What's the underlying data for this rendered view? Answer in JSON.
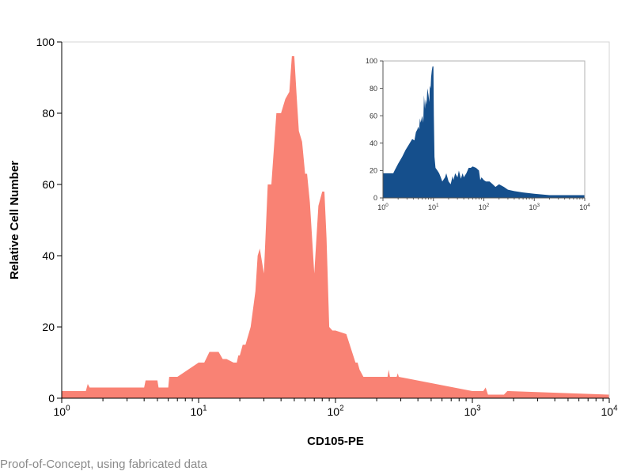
{
  "footer_text": "Proof-of-Concept, using fabricated data",
  "chart_data": [
    {
      "type": "area",
      "xlabel": "CD105-PE",
      "ylabel": "Relative Cell Number",
      "x_scale": "log",
      "xlim": [
        1,
        10000
      ],
      "ylim": [
        0,
        100
      ],
      "x_tick_labels": [
        {
          "base": "10",
          "exp": "0"
        },
        {
          "base": "10",
          "exp": "1"
        },
        {
          "base": "10",
          "exp": "2"
        },
        {
          "base": "10",
          "exp": "3"
        },
        {
          "base": "10",
          "exp": "4"
        }
      ],
      "y_ticks": [
        0,
        20,
        40,
        60,
        80,
        100
      ],
      "color": "#f98274",
      "series": [
        {
          "x": [
            1,
            1.5,
            1.55,
            1.6,
            4.0,
            4.1,
            5.0,
            5.1,
            6.0,
            6.1,
            7.0,
            10.0,
            11.0,
            12.0,
            14.0,
            15.0,
            16.0,
            18.0,
            19.0,
            19.5,
            20.0,
            21.0,
            22.0,
            24.0,
            26.0,
            27.0,
            28.0,
            30.0,
            32.0,
            34.0,
            37.0,
            40.0,
            43.0,
            46.0,
            48.0,
            50.0,
            52.0,
            54.0,
            57.0,
            60.0,
            62.0,
            65.0,
            70.0,
            75.0,
            80.0,
            83.0,
            86.0,
            90.0,
            95.0,
            100.0,
            120.0,
            140.0,
            145.0,
            150.0,
            160.0,
            240.0,
            245.0,
            250.0,
            280.0,
            285.0,
            290.0,
            1000.0,
            1200.0,
            1250.0,
            1300.0,
            1700.0,
            1800.0,
            1850.0,
            10000.0
          ],
          "y": [
            2,
            2,
            4,
            3,
            3,
            5,
            5,
            3,
            3,
            6,
            6,
            10,
            10,
            13,
            13,
            11,
            11,
            10,
            10,
            12,
            12,
            15,
            15,
            20,
            30,
            40,
            42,
            35,
            60,
            60,
            80,
            80,
            84,
            86,
            96,
            96,
            85,
            75,
            72,
            63,
            63,
            55,
            35,
            54,
            58,
            58,
            45,
            20,
            19,
            19,
            18,
            10,
            10,
            8,
            6,
            6,
            8,
            6,
            6,
            7,
            6,
            2,
            2,
            3,
            1,
            1,
            2,
            2,
            1
          ]
        }
      ]
    },
    {
      "type": "area",
      "inset": true,
      "x_scale": "log",
      "xlim": [
        1,
        10000
      ],
      "ylim": [
        0,
        100
      ],
      "x_tick_labels": [
        {
          "base": "10",
          "exp": "0"
        },
        {
          "base": "10",
          "exp": "1"
        },
        {
          "base": "10",
          "exp": "2"
        },
        {
          "base": "10",
          "exp": "3"
        },
        {
          "base": "10",
          "exp": "4"
        }
      ],
      "y_ticks": [
        0,
        20,
        40,
        60,
        80,
        100
      ],
      "color": "#154f8c",
      "series": [
        {
          "x": [
            1.0,
            1.6,
            1.7,
            2.0,
            2.4,
            2.8,
            3.4,
            3.8,
            4.2,
            4.5,
            4.8,
            5.0,
            5.2,
            5.4,
            5.6,
            6.0,
            6.3,
            6.5,
            6.8,
            7.0,
            7.3,
            7.6,
            8.0,
            8.3,
            8.5,
            8.8,
            9.0,
            9.3,
            9.6,
            10.0,
            10.2,
            10.5,
            11.0,
            12.0,
            13.0,
            14.0,
            15.0,
            17.0,
            18.0,
            20.0,
            22.0,
            24.0,
            25.0,
            27.0,
            30.0,
            32.0,
            35.0,
            38.0,
            40.0,
            45.0,
            50.0,
            55.0,
            60.0,
            70.0,
            80.0,
            85.0,
            90.0,
            100.0,
            110.0,
            130.0,
            150.0,
            170.0,
            200.0,
            250.0,
            300.0,
            400.0,
            600.0,
            1000.0,
            2000.0,
            5000.0,
            10000.0
          ],
          "y": [
            18,
            18,
            20,
            25,
            30,
            35,
            40,
            43,
            42,
            48,
            50,
            52,
            50,
            58,
            55,
            60,
            55,
            75,
            65,
            72,
            68,
            80,
            75,
            70,
            82,
            80,
            88,
            93,
            96,
            96,
            60,
            30,
            22,
            20,
            18,
            15,
            12,
            15,
            18,
            12,
            10,
            16,
            13,
            18,
            15,
            20,
            14,
            18,
            15,
            18,
            22,
            22,
            23,
            22,
            20,
            13,
            15,
            13,
            12,
            12,
            10,
            8,
            10,
            8,
            6,
            5,
            4,
            3,
            2,
            2,
            2
          ]
        }
      ]
    }
  ]
}
